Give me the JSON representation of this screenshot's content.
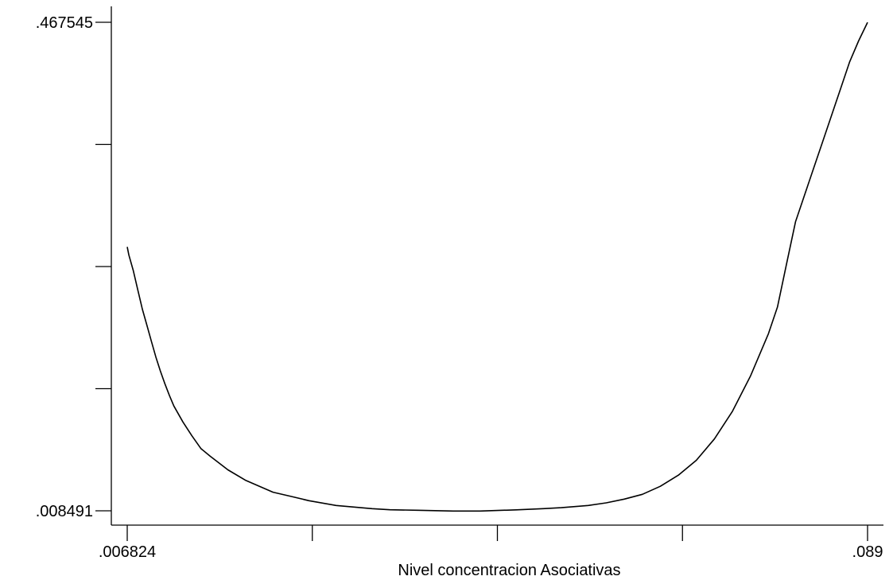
{
  "chart_data": {
    "type": "line",
    "title": "",
    "xlabel": "Nivel concentracion Asociativas",
    "ylabel": "",
    "xlim": [
      0.006824,
      0.089
    ],
    "ylim": [
      0.008491,
      0.467545
    ],
    "x_ticks": [
      0.006824,
      0.027368,
      0.047912,
      0.068456,
      0.089
    ],
    "x_tick_labels": [
      ".006824",
      "",
      "",
      "",
      ".089"
    ],
    "y_ticks": [
      0.008491,
      0.123255,
      0.238018,
      0.352782,
      0.467545
    ],
    "y_tick_labels": [
      ".008491",
      "",
      "",
      "",
      ".467545"
    ],
    "grid": false,
    "legend": "none",
    "line_color": "#000000",
    "series": [
      {
        "x": [
          0.006824,
          0.007,
          0.0075,
          0.008,
          0.0085,
          0.009,
          0.0095,
          0.01,
          0.0105,
          0.011,
          0.0115,
          0.012,
          0.013,
          0.014,
          0.015,
          0.016,
          0.018,
          0.02,
          0.023,
          0.025,
          0.027,
          0.03,
          0.034,
          0.036,
          0.039,
          0.043,
          0.046,
          0.05,
          0.053,
          0.055,
          0.058,
          0.06,
          0.062,
          0.064,
          0.066,
          0.068,
          0.07,
          0.072,
          0.074,
          0.076,
          0.078,
          0.079,
          0.08,
          0.081,
          0.082,
          0.083,
          0.084,
          0.085,
          0.086,
          0.087,
          0.088,
          0.089
        ],
        "y": [
          0.2565,
          0.249,
          0.234,
          0.216,
          0.198,
          0.183,
          0.168,
          0.153,
          0.14,
          0.128,
          0.117,
          0.107,
          0.092,
          0.079,
          0.067,
          0.06,
          0.047,
          0.037,
          0.026,
          0.022,
          0.018,
          0.0135,
          0.0105,
          0.0095,
          0.009,
          0.0083,
          0.0083,
          0.0094,
          0.0105,
          0.0114,
          0.0135,
          0.016,
          0.0195,
          0.024,
          0.0315,
          0.042,
          0.056,
          0.076,
          0.102,
          0.135,
          0.175,
          0.2,
          0.24,
          0.28,
          0.305,
          0.33,
          0.355,
          0.38,
          0.405,
          0.43,
          0.45,
          0.4675
        ]
      }
    ]
  }
}
